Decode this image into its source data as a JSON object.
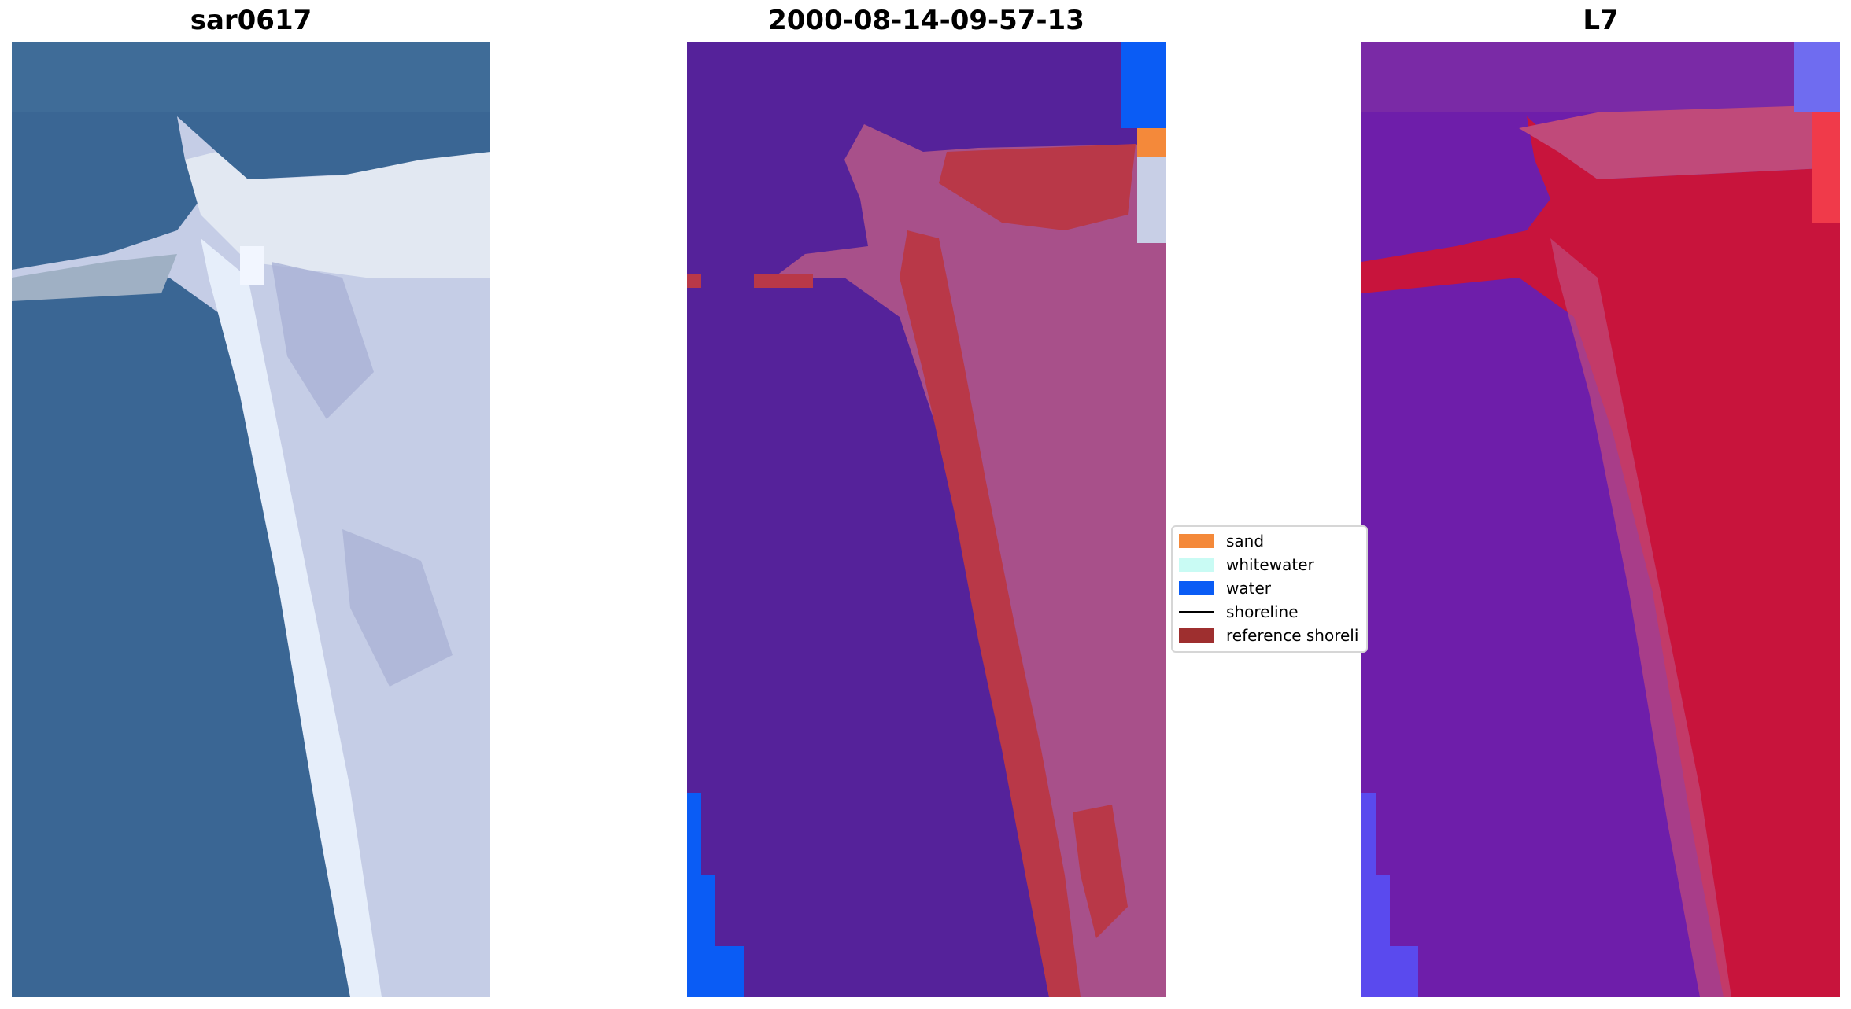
{
  "panels": [
    {
      "title": "sar0617"
    },
    {
      "title": "2000-08-14-09-57-13"
    },
    {
      "title": "L7"
    }
  ],
  "legend": {
    "items": [
      {
        "label": "sand",
        "color": "#f4893a",
        "kind": "patch"
      },
      {
        "label": "whitewater",
        "color": "#c9fbf4",
        "kind": "patch"
      },
      {
        "label": "water",
        "color": "#0a5cf5",
        "kind": "patch"
      },
      {
        "label": "shoreline",
        "color": "#000000",
        "kind": "line"
      },
      {
        "label": "reference shoreli",
        "color": "#9e2f2f",
        "kind": "patch"
      }
    ]
  },
  "colors": {
    "rgb_water": "#3a6694",
    "rgb_sand": "#c8cee6",
    "classified_water": "#55229a",
    "classified_sand_tint": "#a8508a",
    "reference_band": "#b93848",
    "l7_water": "#6e1eaa",
    "l7_land": "#c8143c"
  }
}
